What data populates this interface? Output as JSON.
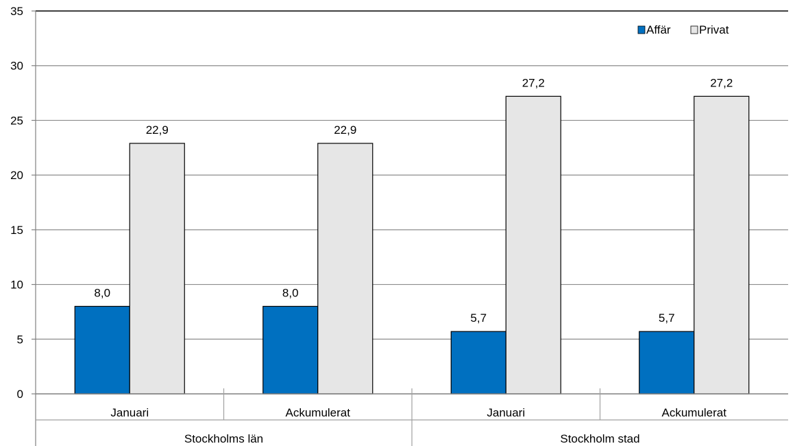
{
  "chart_data": {
    "type": "bar",
    "categories": [
      "Januari",
      "Ackumulerat",
      "Januari",
      "Ackumulerat"
    ],
    "groups": [
      {
        "label": "Stockholms län",
        "categories": [
          "Januari",
          "Ackumulerat"
        ]
      },
      {
        "label": "Stockholm stad",
        "categories": [
          "Januari",
          "Ackumulerat"
        ]
      }
    ],
    "series": [
      {
        "name": "Affär",
        "color": "#0070C0",
        "values": [
          8.0,
          8.0,
          5.7,
          5.7
        ],
        "labels": [
          "8,0",
          "8,0",
          "5,7",
          "5,7"
        ]
      },
      {
        "name": "Privat",
        "color": "#E6E6E6",
        "values": [
          22.9,
          22.9,
          27.2,
          27.2
        ],
        "labels": [
          "22,9",
          "22,9",
          "27,2",
          "27,2"
        ]
      }
    ],
    "ylim": [
      0,
      35
    ],
    "yticks": [
      "0",
      "5",
      "10",
      "15",
      "20",
      "25",
      "30",
      "35"
    ],
    "title": "",
    "xlabel": "",
    "ylabel": "",
    "grid": true,
    "legend_position": "top-right"
  }
}
